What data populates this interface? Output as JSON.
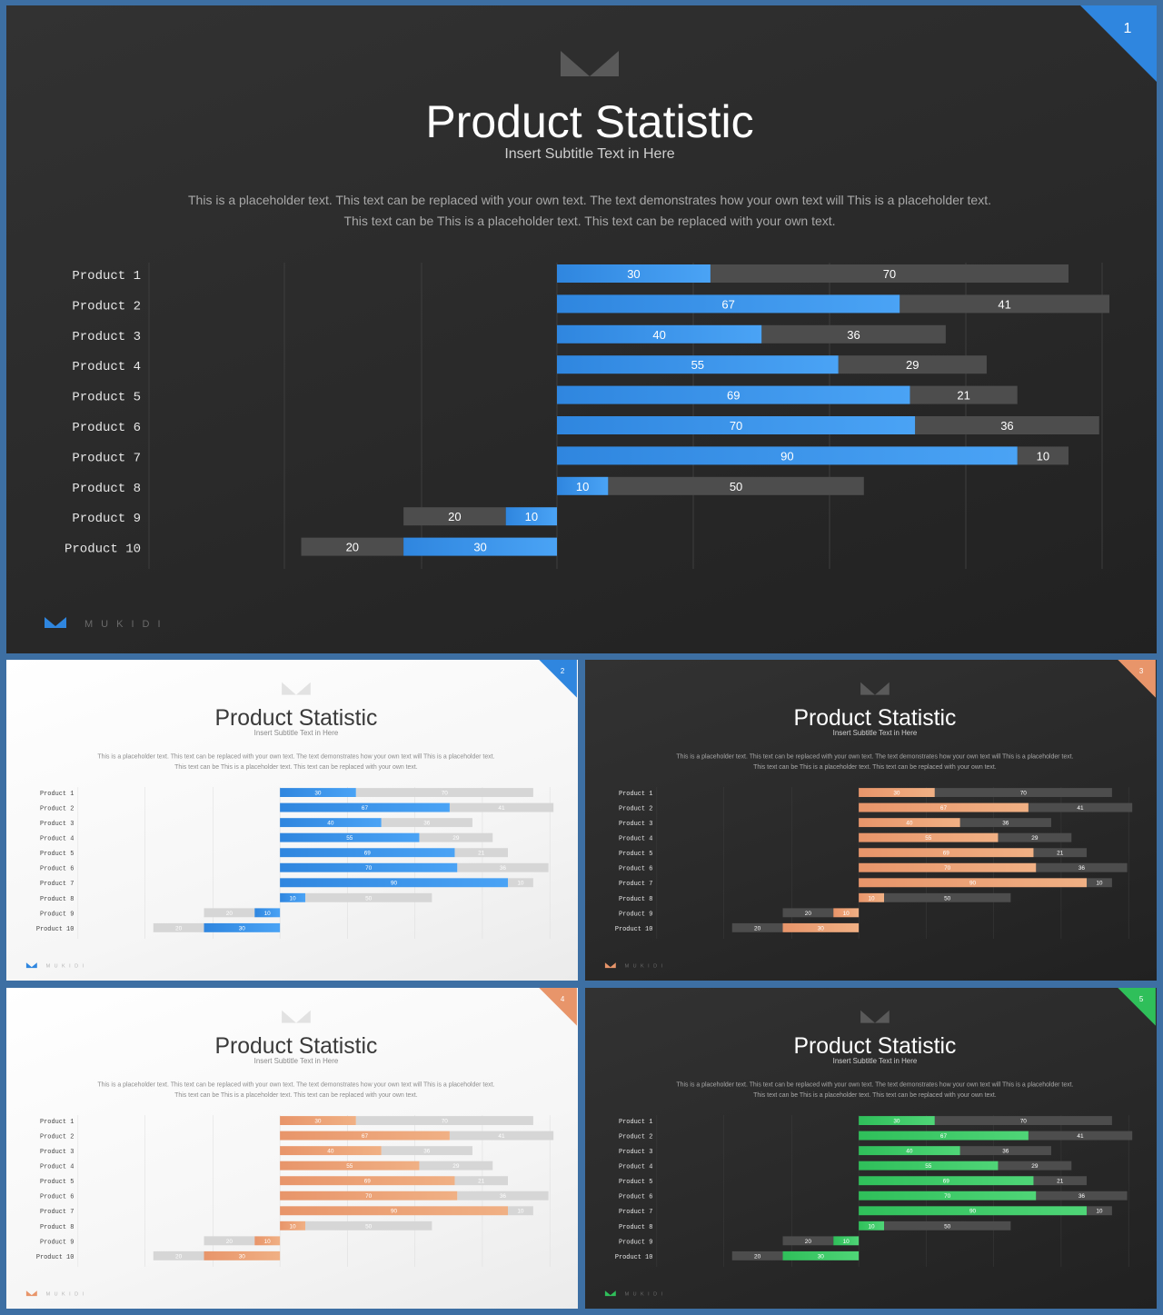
{
  "slides": [
    {
      "number": "1",
      "theme": "dark",
      "accent": "#2f86df",
      "accent_light": "#4aa3f5",
      "title": "Product Statistic",
      "subtitle": "Insert Subtitle Text in Here",
      "body": "This is a placeholder text. This text can be replaced with your own text. The text demonstrates how your own text will This is a placeholder text. This text can be  This is a placeholder text. This text can be replaced with your own text.",
      "brand": "MUKIDI"
    },
    {
      "number": "2",
      "theme": "light",
      "accent": "#2f86df",
      "accent_light": "#4aa3f5",
      "title": "Product Statistic",
      "subtitle": "Insert Subtitle Text in Here",
      "body": "This is a placeholder text. This text can be replaced with your own text. The text demonstrates how your own text will This is a placeholder text. This text can be  This is a placeholder text. This text can be replaced with your own text.",
      "brand": "MUKIDI"
    },
    {
      "number": "3",
      "theme": "dark",
      "accent": "#e8956a",
      "accent_light": "#f0b084",
      "title": "Product Statistic",
      "subtitle": "Insert Subtitle Text in Here",
      "body": "This is a placeholder text. This text can be replaced with your own text. The text demonstrates how your own text will This is a placeholder text. This text can be  This is a placeholder text. This text can be replaced with your own text.",
      "brand": "MUKIDI"
    },
    {
      "number": "4",
      "theme": "light",
      "accent": "#e8956a",
      "accent_light": "#f0b084",
      "title": "Product Statistic",
      "subtitle": "Insert Subtitle Text in Here",
      "body": "This is a placeholder text. This text can be replaced with your own text. The text demonstrates how your own text will This is a placeholder text. This text can be  This is a placeholder text. This text can be replaced with your own text.",
      "brand": "MUKIDI"
    },
    {
      "number": "5",
      "theme": "dark",
      "accent": "#2fbf5a",
      "accent_light": "#4fd577",
      "title": "Product Statistic",
      "subtitle": "Insert Subtitle Text in Here",
      "body": "This is a placeholder text. This text can be replaced with your own text. The text demonstrates how your own text will This is a placeholder text. This text can be  This is a placeholder text. This text can be replaced with your own text.",
      "brand": "MUKIDI"
    }
  ],
  "chart_data": {
    "type": "bar",
    "orientation": "horizontal",
    "stacked": "diverging",
    "categories": [
      "Product 1",
      "Product 2",
      "Product 3",
      "Product 4",
      "Product 5",
      "Product 6",
      "Product 7",
      "Product 8",
      "Product 9",
      "Product 10"
    ],
    "series": [
      {
        "values": [
          30,
          67,
          40,
          55,
          69,
          70,
          90,
          10,
          -10,
          -30
        ]
      },
      {
        "values": [
          70,
          41,
          36,
          29,
          21,
          36,
          10,
          50,
          -20,
          -20
        ]
      }
    ],
    "labels": [
      [
        30,
        70
      ],
      [
        67,
        41
      ],
      [
        40,
        36
      ],
      [
        55,
        29
      ],
      [
        69,
        21
      ],
      [
        70,
        36
      ],
      [
        90,
        10
      ],
      [
        10,
        50
      ],
      [
        10,
        20
      ],
      [
        30,
        20
      ]
    ],
    "xlim": [
      -60,
      100
    ],
    "grid": true
  }
}
